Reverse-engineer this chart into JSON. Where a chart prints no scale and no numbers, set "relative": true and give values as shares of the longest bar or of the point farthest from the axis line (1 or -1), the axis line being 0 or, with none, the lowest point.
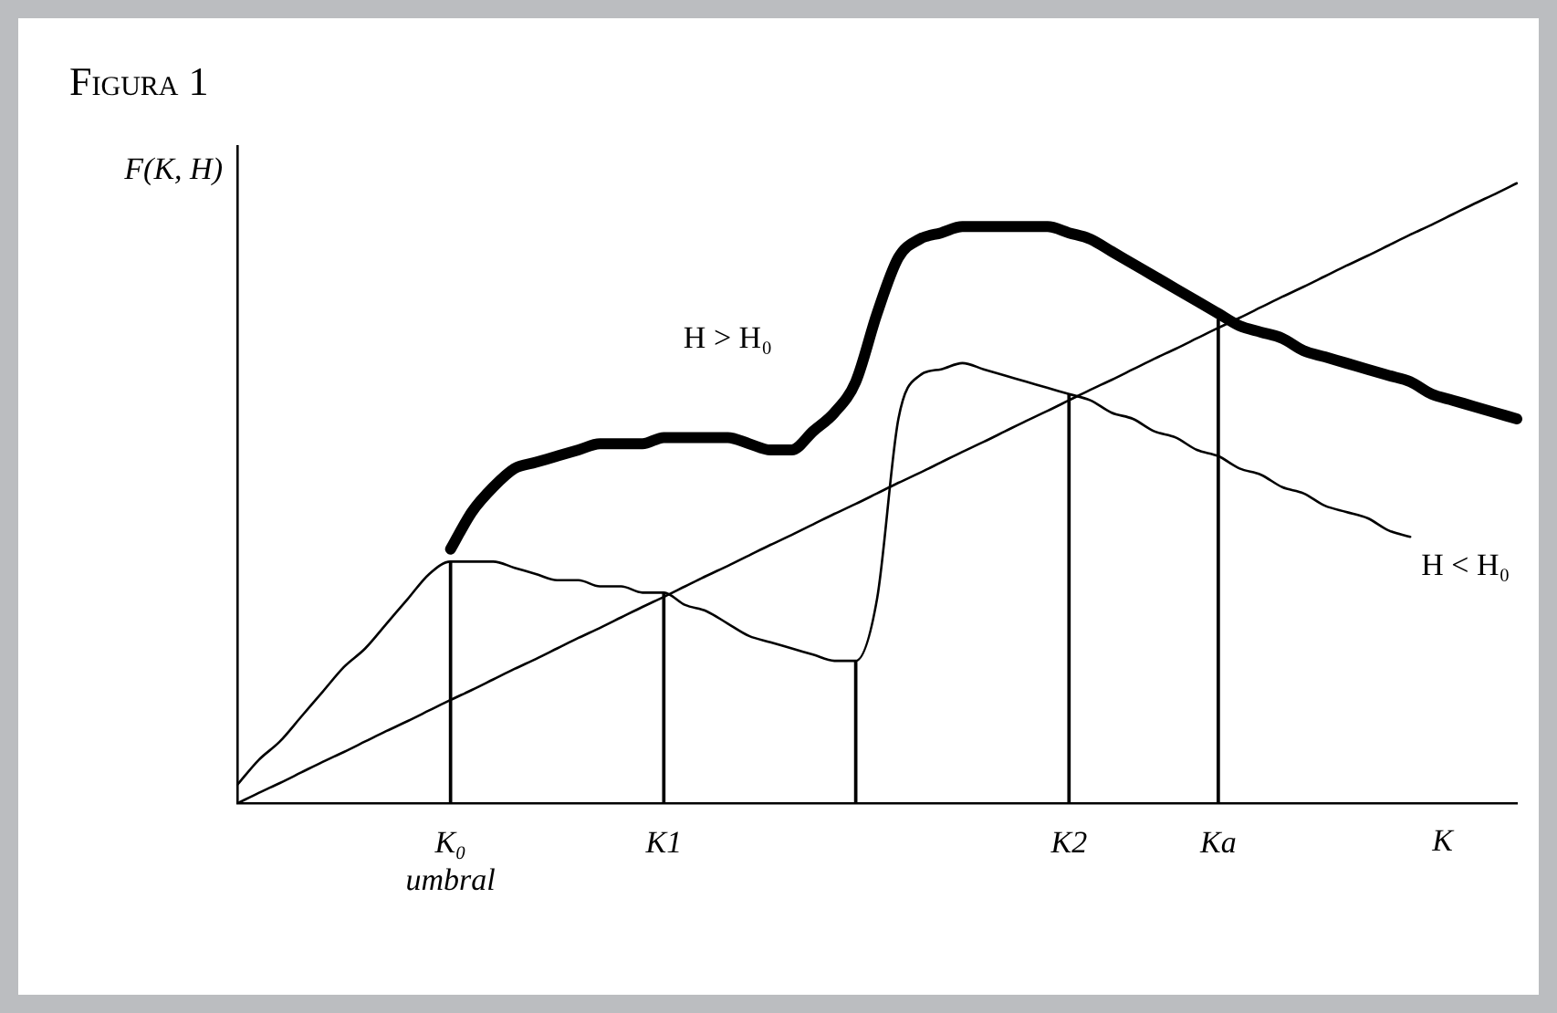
{
  "chart_data": {
    "type": "line",
    "title": "Figura 1",
    "ylabel": "F(K, H)",
    "xlabel": "K",
    "relative": true,
    "grid": false,
    "legend": false,
    "marker": "none",
    "categories": [
      null,
      null,
      null,
      null,
      null,
      null,
      null,
      null,
      null,
      null,
      "K₀\numbral",
      null,
      null,
      null,
      null,
      null,
      null,
      null,
      null,
      null,
      "K1",
      null,
      null,
      null,
      null,
      null,
      null,
      null,
      null,
      null,
      null,
      null,
      null,
      null,
      null,
      null,
      null,
      null,
      null,
      "K2",
      null,
      null,
      null,
      null,
      null,
      null,
      "Ka",
      null,
      null,
      null,
      null,
      null,
      null,
      null,
      null,
      null,
      null,
      null,
      null,
      null,
      null
    ],
    "series": [
      {
        "name": "H > H₀",
        "color": "#000000",
        "values": [
          null,
          null,
          null,
          null,
          null,
          null,
          null,
          null,
          null,
          null,
          0.41,
          0.47,
          0.51,
          0.54,
          0.55,
          0.56,
          0.57,
          0.58,
          0.58,
          0.58,
          0.59,
          0.59,
          0.59,
          0.59,
          0.58,
          0.57,
          0.57,
          0.6,
          0.63,
          0.68,
          0.79,
          0.88,
          0.91,
          0.92,
          0.93,
          0.93,
          0.93,
          0.93,
          0.93,
          0.92,
          0.91,
          0.89,
          0.87,
          0.85,
          0.83,
          0.81,
          0.79,
          0.77,
          0.76,
          0.75,
          0.73,
          0.72,
          0.71,
          0.7,
          0.69,
          0.68,
          0.66,
          0.65,
          0.64,
          0.63,
          0.62
        ]
      },
      {
        "name": "H < H₀",
        "color": "#000000",
        "values": [
          0.03,
          0.07,
          0.1,
          0.14,
          0.18,
          0.22,
          0.25,
          0.29,
          0.33,
          0.37,
          0.39,
          0.39,
          0.39,
          0.38,
          0.37,
          0.36,
          0.36,
          0.35,
          0.35,
          0.34,
          0.34,
          0.32,
          0.31,
          0.29,
          0.27,
          0.26,
          0.25,
          0.24,
          0.23,
          0.23,
          0.33,
          0.62,
          0.69,
          0.7,
          0.71,
          0.7,
          0.69,
          0.68,
          0.67,
          0.66,
          0.65,
          0.63,
          0.62,
          0.6,
          0.59,
          0.57,
          0.56,
          0.54,
          0.53,
          0.51,
          0.5,
          0.48,
          0.47,
          0.46,
          0.44,
          0.43,
          null,
          null,
          null,
          null,
          null
        ]
      },
      {
        "color": "#000000",
        "values": [
          0,
          0.017,
          0.033,
          0.05,
          0.067,
          0.083,
          0.1,
          0.117,
          0.133,
          0.15,
          0.167,
          0.183,
          0.2,
          0.217,
          0.233,
          0.25,
          0.267,
          0.283,
          0.3,
          0.317,
          0.333,
          0.35,
          0.367,
          0.383,
          0.4,
          0.417,
          0.433,
          0.45,
          0.467,
          0.483,
          0.5,
          0.517,
          0.533,
          0.55,
          0.567,
          0.583,
          0.6,
          0.617,
          0.633,
          0.65,
          0.667,
          0.683,
          0.7,
          0.717,
          0.733,
          0.75,
          0.767,
          0.783,
          0.8,
          0.817,
          0.833,
          0.85,
          0.867,
          0.883,
          0.9,
          0.917,
          0.933,
          0.95,
          0.967,
          0.983,
          1
        ]
      },
      {
        "type": "bar",
        "color": "#000000",
        "values": [
          null,
          null,
          null,
          null,
          null,
          null,
          null,
          null,
          null,
          null,
          0.39,
          null,
          null,
          null,
          null,
          null,
          null,
          null,
          null,
          null,
          0.34,
          null,
          null,
          null,
          null,
          null,
          null,
          null,
          null,
          0.23,
          null,
          null,
          null,
          null,
          null,
          null,
          null,
          null,
          null,
          0.66,
          null,
          null,
          null,
          null,
          null,
          null,
          0.78,
          null,
          null,
          null,
          null,
          null,
          null,
          null,
          null,
          null,
          null,
          null,
          null,
          null,
          null
        ]
      }
    ]
  }
}
